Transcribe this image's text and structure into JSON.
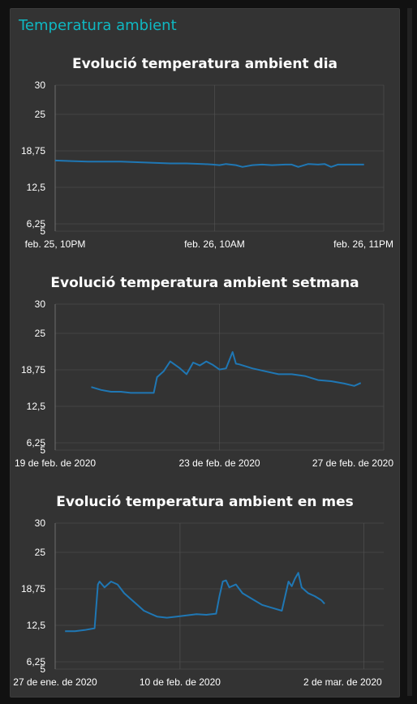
{
  "panel": {
    "title": "Temperatura ambient",
    "title_color": "#0fb8c2"
  },
  "colors": {
    "background": "#111111",
    "panel": "#333333",
    "line": "#1f77b4",
    "grid": "#555555",
    "text": "#ffffff"
  },
  "chart_data": [
    {
      "type": "line",
      "title": "Evolució temperatura ambient dia",
      "ylim": [
        5,
        30
      ],
      "yticks": [
        30,
        25,
        18.75,
        12.5,
        6.25,
        5
      ],
      "ytick_labels": [
        "30",
        "25",
        "18,75",
        "12,5",
        "6,25",
        "5"
      ],
      "xtick_labels": [
        "feb. 25, 10PM",
        "feb. 26, 10AM",
        "feb. 26, 11PM"
      ],
      "xtick_positions": [
        0,
        0.485,
        1.0
      ],
      "grid": true,
      "series": [
        {
          "x": [
            0.0,
            0.05,
            0.1,
            0.15,
            0.2,
            0.25,
            0.3,
            0.35,
            0.4,
            0.45,
            0.48,
            0.5,
            0.52,
            0.55,
            0.57,
            0.6,
            0.63,
            0.66,
            0.7,
            0.72,
            0.74,
            0.77,
            0.8,
            0.82,
            0.84,
            0.86,
            0.9,
            0.94
          ],
          "y": [
            17.1,
            17.0,
            16.9,
            16.9,
            16.9,
            16.8,
            16.7,
            16.6,
            16.6,
            16.5,
            16.4,
            16.3,
            16.5,
            16.3,
            16.0,
            16.3,
            16.4,
            16.3,
            16.4,
            16.4,
            16.0,
            16.5,
            16.4,
            16.5,
            16.0,
            16.4,
            16.4,
            16.4
          ]
        }
      ]
    },
    {
      "type": "line",
      "title": "Evolució temperatura ambient setmana",
      "ylim": [
        5,
        30
      ],
      "yticks": [
        30,
        25,
        18.75,
        12.5,
        6.25,
        5
      ],
      "ytick_labels": [
        "30",
        "25",
        "18,75",
        "12,5",
        "6,25",
        "5"
      ],
      "xtick_labels": [
        "19 de feb. de 2020",
        "23 de feb. de 2020",
        "27 de feb. de 2020"
      ],
      "xtick_positions": [
        0,
        0.5,
        1.0
      ],
      "grid": true,
      "series": [
        {
          "x": [
            0.11,
            0.14,
            0.17,
            0.2,
            0.23,
            0.26,
            0.29,
            0.3,
            0.31,
            0.33,
            0.35,
            0.38,
            0.4,
            0.42,
            0.44,
            0.46,
            0.48,
            0.5,
            0.52,
            0.54,
            0.55,
            0.56,
            0.6,
            0.64,
            0.68,
            0.72,
            0.76,
            0.8,
            0.84,
            0.88,
            0.91,
            0.93
          ],
          "y": [
            15.8,
            15.3,
            15.0,
            15.0,
            14.8,
            14.8,
            14.8,
            14.8,
            17.5,
            18.5,
            20.2,
            19.0,
            18.0,
            20.0,
            19.5,
            20.2,
            19.6,
            18.8,
            19.0,
            21.8,
            19.8,
            19.7,
            19.0,
            18.5,
            18.0,
            18.0,
            17.7,
            17.0,
            16.8,
            16.4,
            16.0,
            16.5
          ]
        }
      ]
    },
    {
      "type": "line",
      "title": "Evolució temperatura ambient en mes",
      "ylim": [
        5,
        30
      ],
      "yticks": [
        30,
        25,
        18.75,
        12.5,
        6.25,
        5
      ],
      "ytick_labels": [
        "30",
        "25",
        "18,75",
        "12,5",
        "6,25",
        "5"
      ],
      "xtick_labels": [
        "27 de ene. de 2020",
        "10 de feb. de 2020",
        "2 de mar. de 2020"
      ],
      "xtick_positions": [
        0,
        0.38,
        0.94
      ],
      "grid": true,
      "series": [
        {
          "x": [
            0.03,
            0.06,
            0.09,
            0.12,
            0.13,
            0.135,
            0.15,
            0.17,
            0.19,
            0.21,
            0.23,
            0.25,
            0.27,
            0.29,
            0.31,
            0.34,
            0.37,
            0.4,
            0.43,
            0.46,
            0.49,
            0.5,
            0.51,
            0.52,
            0.53,
            0.55,
            0.57,
            0.6,
            0.63,
            0.66,
            0.69,
            0.7,
            0.71,
            0.72,
            0.73,
            0.74,
            0.75,
            0.77,
            0.79,
            0.81,
            0.82
          ],
          "y": [
            11.5,
            11.5,
            11.7,
            12.0,
            19.5,
            20.0,
            19.0,
            20.0,
            19.5,
            18.0,
            17.0,
            16.0,
            15.0,
            14.5,
            14.0,
            13.8,
            14.0,
            14.2,
            14.4,
            14.3,
            14.5,
            17.5,
            20.0,
            20.2,
            19.0,
            19.5,
            18.0,
            17.0,
            16.0,
            15.5,
            15.0,
            17.5,
            20.0,
            19.2,
            20.5,
            21.5,
            19.0,
            18.0,
            17.5,
            16.8,
            16.2
          ]
        }
      ]
    }
  ]
}
